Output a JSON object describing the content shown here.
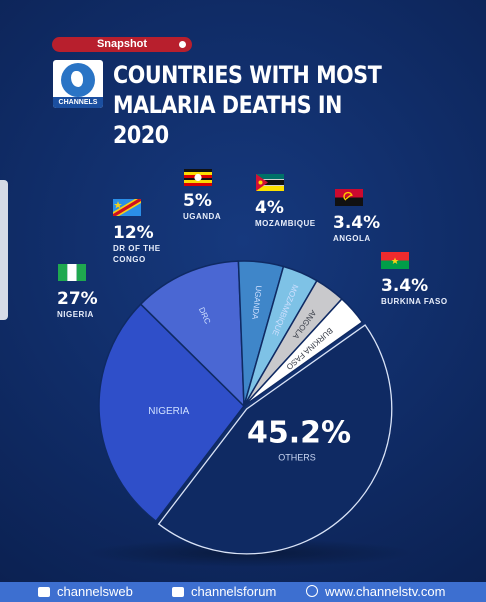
{
  "header": {
    "badge": "Snapshot",
    "brand": "CHANNELS",
    "title_line1": "COUNTRIES WITH MOST",
    "title_line2": "MALARIA DEATHS IN 2020"
  },
  "chart_data": {
    "type": "pie",
    "title": "COUNTRIES WITH MOST MALARIA DEATHS IN 2020",
    "slices": [
      {
        "label": "NIGERIA",
        "inner_label": "NIGERIA",
        "value": 27,
        "value_label": "27%",
        "color": "#2f4fc9"
      },
      {
        "label": "DR OF THE CONGO",
        "inner_label": "DRC",
        "value": 12,
        "value_label": "12%",
        "color": "#4a67d3"
      },
      {
        "label": "UGANDA",
        "inner_label": "UGANDA",
        "value": 5,
        "value_label": "5%",
        "color": "#3f86c9"
      },
      {
        "label": "MOZAMBIQUE",
        "inner_label": "MOZAMBIQUE",
        "value": 4,
        "value_label": "4%",
        "color": "#7ec2e6"
      },
      {
        "label": "ANGOLA",
        "inner_label": "ANGOLA",
        "value": 3.4,
        "value_label": "3.4%",
        "color": "#c9c9cc"
      },
      {
        "label": "BURKINA FASO",
        "inner_label": "BURKINA FASO",
        "value": 3.4,
        "value_label": "3.4%",
        "color": "#ffffff"
      },
      {
        "label": "OTHERS",
        "inner_label": "OTHERS",
        "value": 45.2,
        "value_label": "45.2%",
        "color": "#0f2a63"
      }
    ]
  },
  "footer": {
    "youtube": "channelsweb",
    "facebook": "channelsforum",
    "website": "www.channelstv.com"
  }
}
